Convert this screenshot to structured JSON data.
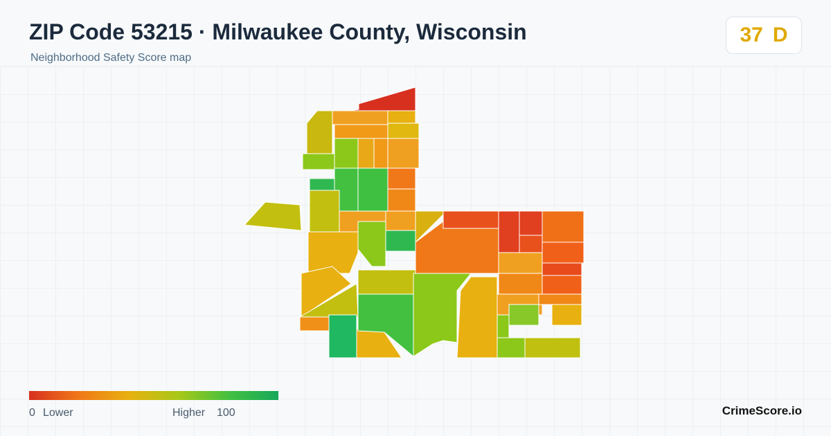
{
  "header": {
    "title": "ZIP Code 53215 · Milwaukee County, Wisconsin",
    "subtitle": "Neighborhood Safety Score map"
  },
  "score": {
    "value": 37,
    "grade": "D"
  },
  "legend": {
    "min": 0,
    "min_label": "Lower",
    "max_label": "Higher",
    "max": 100
  },
  "brand": "CrimeScore.io"
}
